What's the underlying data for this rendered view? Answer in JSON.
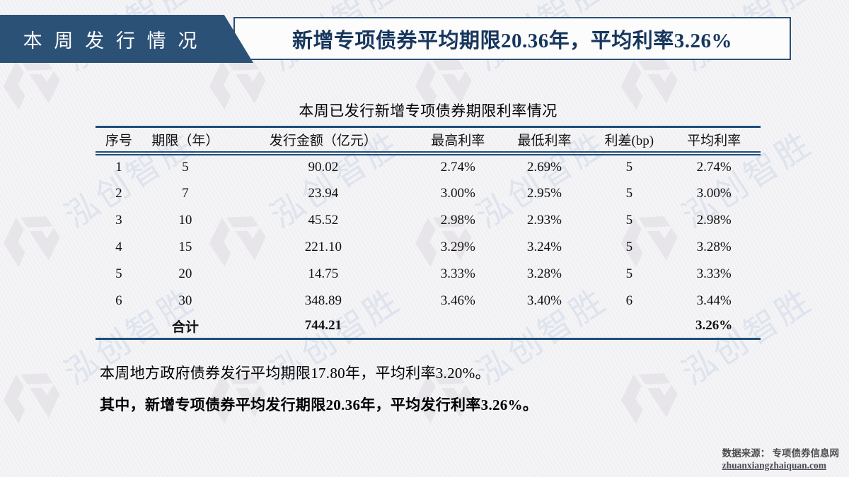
{
  "header": {
    "tab_label": "本 周 发 行 情 况",
    "title": "新增专项债券平均期限20.36年，平均利率3.26%"
  },
  "table": {
    "title": "本周已发行新增专项债券期限利率情况",
    "columns": [
      "序号",
      "期限（年）",
      "发行金额（亿元）",
      "最高利率",
      "最低利率",
      "利差(bp)",
      "平均利率"
    ],
    "rows": [
      [
        "1",
        "5",
        "90.02",
        "2.74%",
        "2.69%",
        "5",
        "2.74%"
      ],
      [
        "2",
        "7",
        "23.94",
        "3.00%",
        "2.95%",
        "5",
        "3.00%"
      ],
      [
        "3",
        "10",
        "45.52",
        "2.98%",
        "2.93%",
        "5",
        "2.98%"
      ],
      [
        "4",
        "15",
        "221.10",
        "3.29%",
        "3.24%",
        "5",
        "3.28%"
      ],
      [
        "5",
        "20",
        "14.75",
        "3.33%",
        "3.28%",
        "5",
        "3.33%"
      ],
      [
        "6",
        "30",
        "348.89",
        "3.46%",
        "3.40%",
        "6",
        "3.44%"
      ]
    ],
    "total_row": [
      "",
      "合计",
      "744.21",
      "",
      "",
      "",
      "3.26%"
    ]
  },
  "notes": {
    "line1": "本周地方政府债券发行平均期限17.80年，平均利率3.20%。",
    "line2": "其中，新增专项债券平均发行期限20.36年，平均发行利率3.26%。"
  },
  "source": {
    "label": "数据来源： 专项债券信息网",
    "link": "zhuanxiangzhaiquan.com"
  },
  "watermark": {
    "text": "泓创智胜"
  },
  "colors": {
    "header_box": "#2c5176",
    "title_text": "#17365d",
    "table_rule": "#1f4e79",
    "watermark": "#dee3ee"
  }
}
